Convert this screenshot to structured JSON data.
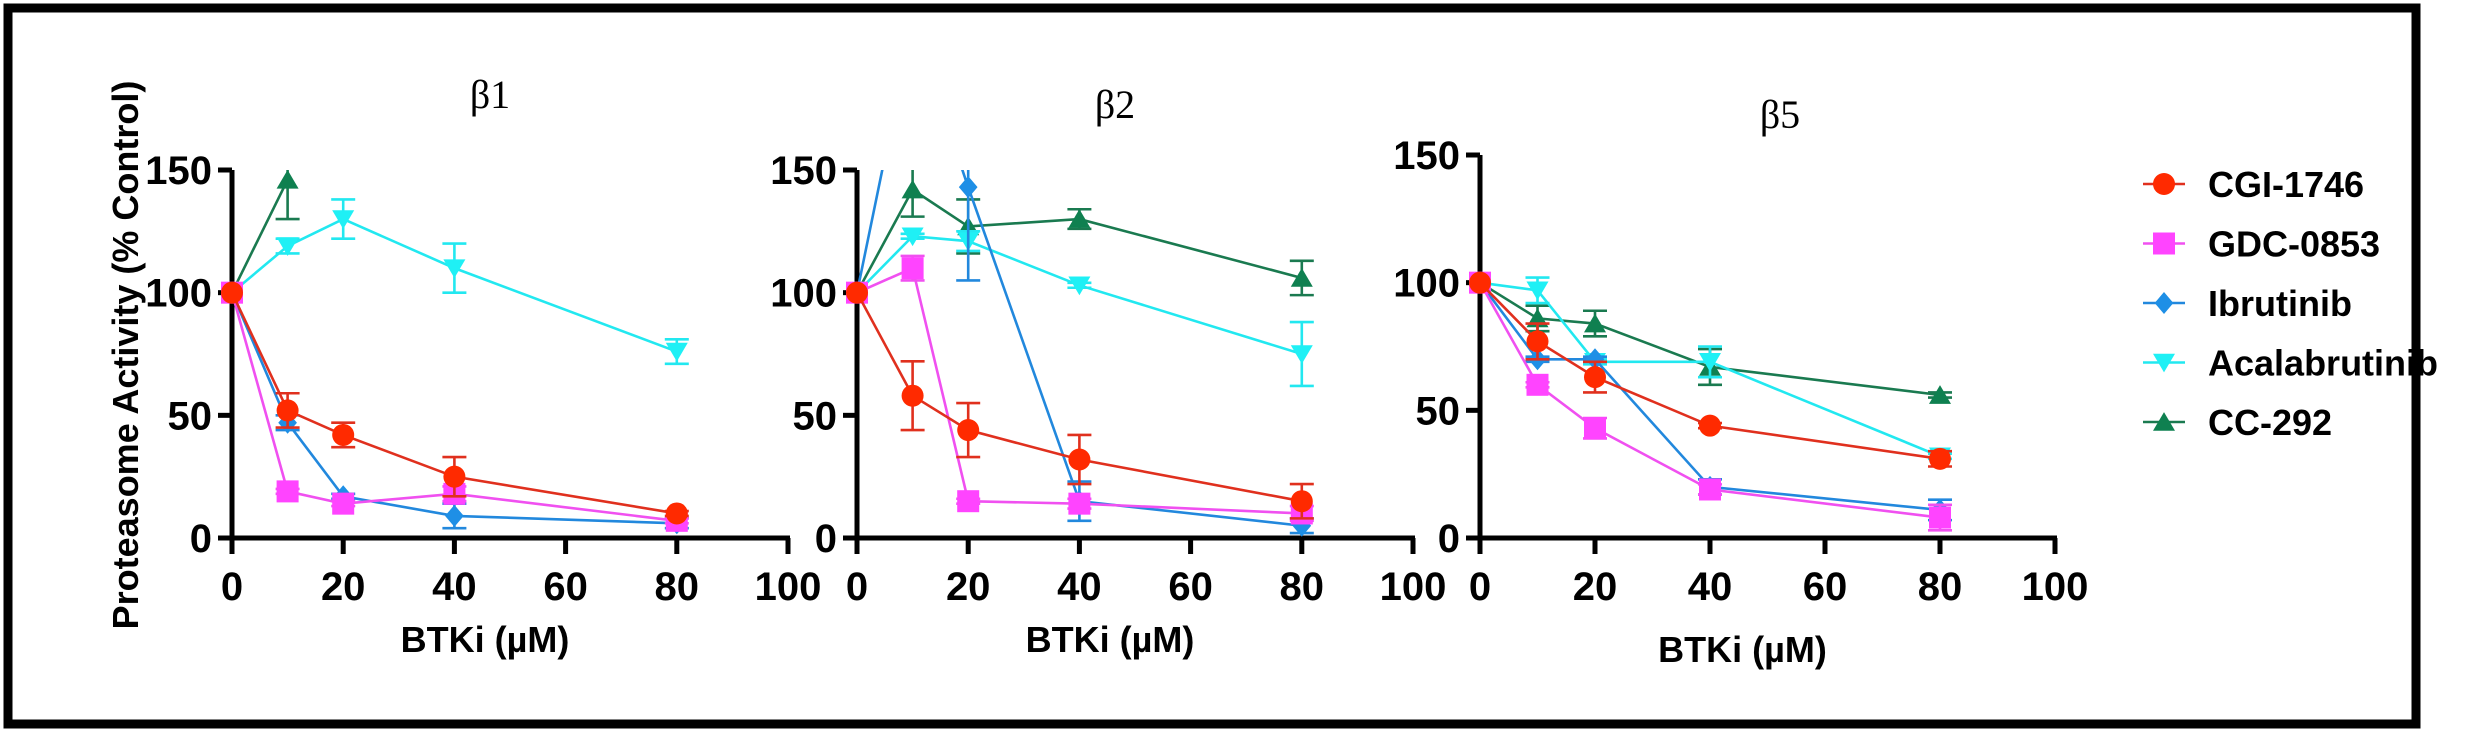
{
  "chart_data": [
    {
      "type": "line",
      "title": "β1",
      "xlabel": "BTKi (µM)",
      "ylabel": "Proteasome Activity (% Control)",
      "xlim": [
        0,
        100
      ],
      "ylim": [
        0,
        150
      ],
      "xticks": [
        0,
        20,
        40,
        60,
        80,
        100
      ],
      "yticks": [
        0,
        50,
        100,
        150
      ],
      "x": [
        0,
        10,
        20,
        40,
        80
      ],
      "series": [
        {
          "name": "CGI-1746",
          "values": [
            100,
            52,
            42,
            25,
            10
          ],
          "errors": [
            0,
            7,
            5,
            8,
            1
          ]
        },
        {
          "name": "GDC-0853",
          "values": [
            100,
            19,
            14,
            18,
            7
          ],
          "errors": [
            0,
            1,
            1,
            3,
            1
          ]
        },
        {
          "name": "Ibrutinib",
          "values": [
            100,
            47,
            17,
            9,
            6
          ],
          "errors": [
            0,
            3,
            1,
            5,
            2
          ]
        },
        {
          "name": "Acalabrutinib",
          "values": [
            100,
            119,
            130,
            110,
            76
          ],
          "errors": [
            0,
            3,
            8,
            10,
            5
          ]
        },
        {
          "name": "CC-292",
          "values": [
            100,
            146,
            null,
            null,
            null
          ],
          "errors": [
            0,
            16,
            null,
            null,
            null
          ]
        }
      ]
    },
    {
      "type": "line",
      "title": "β2",
      "xlabel": "BTKi (µM)",
      "ylabel": "",
      "xlim": [
        0,
        100
      ],
      "ylim": [
        0,
        150
      ],
      "xticks": [
        0,
        20,
        40,
        60,
        80,
        100
      ],
      "yticks": [
        0,
        50,
        100,
        150
      ],
      "x": [
        0,
        10,
        20,
        40,
        80
      ],
      "series": [
        {
          "name": "CGI-1746",
          "values": [
            100,
            58,
            44,
            32,
            15
          ],
          "errors": [
            0,
            14,
            11,
            10,
            7
          ]
        },
        {
          "name": "GDC-0853",
          "values": [
            100,
            110,
            15,
            14,
            10
          ],
          "errors": [
            0,
            5,
            1,
            2,
            3
          ]
        },
        {
          "name": "Ibrutinib",
          "values": [
            100,
            210,
            143,
            15,
            5
          ],
          "errors": [
            0,
            0,
            38,
            8,
            3
          ]
        },
        {
          "name": "Acalabrutinib",
          "values": [
            100,
            123,
            121,
            103,
            75
          ],
          "errors": [
            0,
            1,
            4,
            1,
            13
          ]
        },
        {
          "name": "CC-292",
          "values": [
            100,
            142,
            127,
            130,
            106
          ],
          "errors": [
            0,
            11,
            11,
            4,
            7
          ]
        }
      ]
    },
    {
      "type": "line",
      "title": "β5",
      "xlabel": "BTKi (µM)",
      "ylabel": "",
      "xlim": [
        0,
        100
      ],
      "ylim": [
        0,
        150
      ],
      "xticks": [
        0,
        20,
        40,
        60,
        80,
        100
      ],
      "yticks": [
        0,
        50,
        100,
        150
      ],
      "x": [
        0,
        10,
        20,
        40,
        80
      ],
      "series": [
        {
          "name": "CGI-1746",
          "values": [
            100,
            77,
            63,
            44,
            31
          ],
          "errors": [
            0,
            7,
            6,
            1,
            3
          ]
        },
        {
          "name": "GDC-0853",
          "values": [
            100,
            60,
            43,
            19,
            8
          ],
          "errors": [
            0,
            1,
            4,
            2,
            5
          ]
        },
        {
          "name": "Ibrutinib",
          "values": [
            100,
            70,
            70,
            20,
            11
          ],
          "errors": [
            0,
            1,
            1,
            3,
            4
          ]
        },
        {
          "name": "Acalabrutinib",
          "values": [
            100,
            97,
            69,
            69,
            32
          ],
          "errors": [
            0,
            5,
            1,
            6,
            1
          ]
        },
        {
          "name": "CC-292",
          "values": [
            100,
            86,
            84,
            67,
            56
          ],
          "errors": [
            0,
            5,
            5,
            7,
            1
          ]
        }
      ]
    }
  ],
  "legend": {
    "placement": "right",
    "entries": [
      {
        "name": "CGI-1746",
        "color": "#ff2a00",
        "marker": "circle"
      },
      {
        "name": "GDC-0853",
        "color": "#ff44ff",
        "marker": "square"
      },
      {
        "name": "Ibrutinib",
        "color": "#1e8fe6",
        "marker": "diamond"
      },
      {
        "name": "Acalabrutinib",
        "color": "#1ff0f5",
        "marker": "triangle-down"
      },
      {
        "name": "CC-292",
        "color": "#0f8050",
        "marker": "triangle-up"
      }
    ]
  },
  "series_line_colors": {
    "CGI-1746": "#e0301e",
    "GDC-0853": "#f050f0",
    "Ibrutinib": "#2288dd",
    "Acalabrutinib": "#22e8f0",
    "CC-292": "#1a7a50"
  }
}
